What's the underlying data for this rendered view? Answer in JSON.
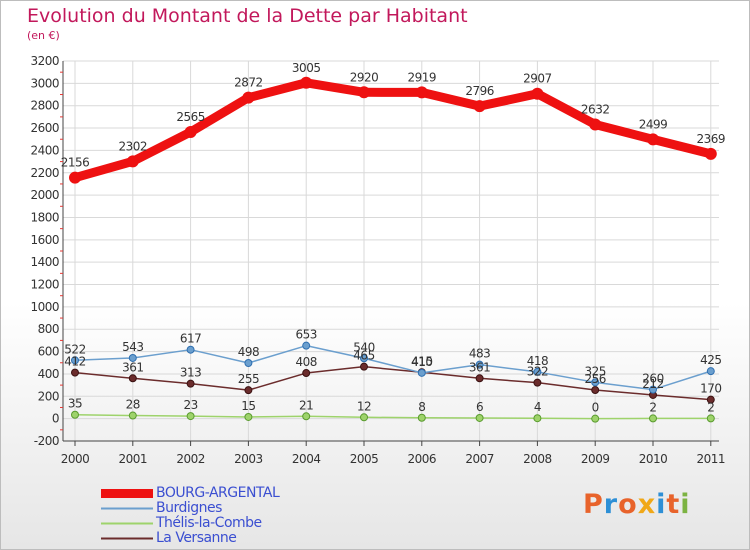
{
  "header": {
    "title": "Evolution du Montant de la Dette par Habitant",
    "subtitle": "(en €)"
  },
  "colors": {
    "title": "#c2185b",
    "axis_text": "#333333",
    "grid": "#d9d9d9",
    "legend_text": "#3b4fd1"
  },
  "logo": {
    "text": "Proxiti",
    "letter_colors": [
      "#e8632b",
      "#2d8fd6",
      "#e8632b",
      "#f0a818",
      "#2d8fd6",
      "#e8632b",
      "#7cb342"
    ]
  },
  "chart_data": {
    "type": "line",
    "title": "Evolution du Montant de la Dette par Habitant",
    "subtitle": "(en €)",
    "x": [
      "2000",
      "2001",
      "2002",
      "2003",
      "2004",
      "2005",
      "2006",
      "2007",
      "2008",
      "2009",
      "2010",
      "2011"
    ],
    "ylim": [
      -200,
      3200
    ],
    "yticks": [
      -200,
      0,
      200,
      400,
      600,
      800,
      1000,
      1200,
      1400,
      1600,
      1800,
      2000,
      2200,
      2400,
      2600,
      2800,
      3000,
      3200
    ],
    "grid": true,
    "legend_position": "bottom-left",
    "series": [
      {
        "name": "BOURG-ARGENTAL",
        "color": "#ee1111",
        "values": [
          2156,
          2302,
          2565,
          2872,
          3005,
          2920,
          2919,
          2796,
          2907,
          2632,
          2499,
          2369
        ],
        "labels": [
          "2156",
          "2302",
          "2565",
          "2872",
          "3005",
          "2920",
          "2919",
          "2796",
          "2907",
          "2632",
          "2499",
          "2369"
        ]
      },
      {
        "name": "Burdignes",
        "color": "#6b9fce",
        "values": [
          522,
          543,
          617,
          498,
          653,
          540,
          410,
          483,
          418,
          325,
          260,
          425
        ],
        "labels": [
          "522",
          "543",
          "617",
          "498",
          "653",
          "540",
          "410",
          "483",
          "418",
          "325",
          "260",
          "425"
        ]
      },
      {
        "name": "Thélis-la-Combe",
        "color": "#9ed36b",
        "values": [
          35,
          28,
          23,
          15,
          21,
          12,
          8,
          6,
          4,
          0,
          2,
          2
        ],
        "labels": [
          "35",
          "28",
          "23",
          "15",
          "21",
          "12",
          "8",
          "6",
          "4",
          "0",
          "2",
          "2"
        ]
      },
      {
        "name": "La Versanne",
        "color": "#6b2c2c",
        "values": [
          412,
          361,
          313,
          255,
          408,
          465,
          415,
          361,
          322,
          256,
          212,
          170
        ],
        "labels": [
          "412",
          "361",
          "313",
          "255",
          "408",
          "465",
          "415",
          "361",
          "322",
          "256",
          "212",
          "170"
        ]
      }
    ]
  }
}
